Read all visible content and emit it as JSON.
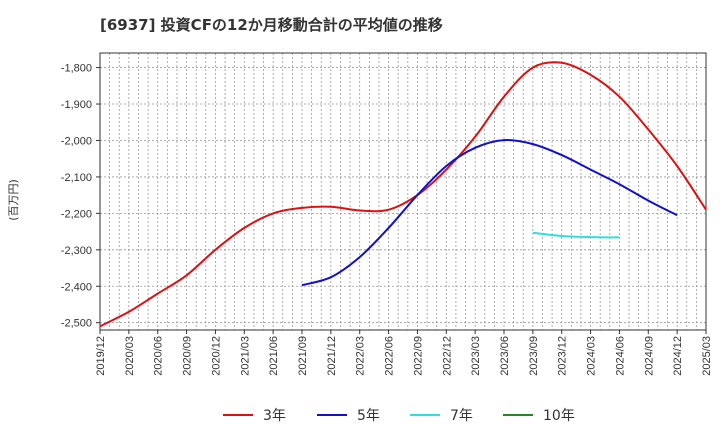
{
  "chart_data": {
    "type": "line",
    "title": "[6937]  投資CFの12か月移動合計の平均値の推移",
    "ylabel": "(百万円)",
    "xlabel": "",
    "ylim": [
      -2520,
      -1760
    ],
    "yticks": [
      -1800,
      -1900,
      -2000,
      -2100,
      -2200,
      -2300,
      -2400,
      -2500
    ],
    "ytick_labels": [
      "-1,800",
      "-1,900",
      "-2,000",
      "-2,100",
      "-2,200",
      "-2,300",
      "-2,400",
      "-2,500"
    ],
    "xlim": [
      "2019-12",
      "2025-03"
    ],
    "xtick_labels": [
      "2019/12",
      "2020/03",
      "2020/06",
      "2020/09",
      "2020/12",
      "2021/03",
      "2021/06",
      "2021/09",
      "2021/12",
      "2022/03",
      "2022/06",
      "2022/09",
      "2022/12",
      "2023/03",
      "2023/06",
      "2023/09",
      "2023/12",
      "2024/03",
      "2024/06",
      "2024/09",
      "2024/12",
      "2025/03"
    ],
    "grid": true,
    "legend_position": "bottom",
    "series": [
      {
        "name": "3年",
        "color": "#dd1111",
        "points": [
          [
            "2019-12",
            -2510
          ],
          [
            "2020-03",
            -2470
          ],
          [
            "2020-06",
            -2420
          ],
          [
            "2020-09",
            -2370
          ],
          [
            "2020-12",
            -2300
          ],
          [
            "2021-03",
            -2240
          ],
          [
            "2021-06",
            -2200
          ],
          [
            "2021-09",
            -2185
          ],
          [
            "2021-12",
            -2182
          ],
          [
            "2022-03",
            -2192
          ],
          [
            "2022-06",
            -2190
          ],
          [
            "2022-09",
            -2150
          ],
          [
            "2022-12",
            -2080
          ],
          [
            "2023-03",
            -1990
          ],
          [
            "2023-06",
            -1880
          ],
          [
            "2023-09",
            -1800
          ],
          [
            "2023-12",
            -1787
          ],
          [
            "2024-03",
            -1820
          ],
          [
            "2024-06",
            -1880
          ],
          [
            "2024-09",
            -1970
          ],
          [
            "2024-12",
            -2070
          ],
          [
            "2025-03",
            -2190
          ]
        ]
      },
      {
        "name": "5年",
        "color": "#1111cc",
        "points": [
          [
            "2021-09",
            -2397
          ],
          [
            "2021-12",
            -2375
          ],
          [
            "2022-03",
            -2320
          ],
          [
            "2022-06",
            -2240
          ],
          [
            "2022-09",
            -2150
          ],
          [
            "2022-12",
            -2070
          ],
          [
            "2023-03",
            -2020
          ],
          [
            "2023-06",
            -1999
          ],
          [
            "2023-09",
            -2010
          ],
          [
            "2023-12",
            -2040
          ],
          [
            "2024-03",
            -2080
          ],
          [
            "2024-06",
            -2120
          ],
          [
            "2024-09",
            -2165
          ],
          [
            "2024-12",
            -2205
          ]
        ]
      },
      {
        "name": "7年",
        "color": "#33dddd",
        "points": [
          [
            "2023-09",
            -2253
          ],
          [
            "2023-12",
            -2262
          ],
          [
            "2024-03",
            -2265
          ],
          [
            "2024-06",
            -2266
          ]
        ]
      },
      {
        "name": "10年",
        "color": "#228822",
        "points": []
      }
    ]
  }
}
